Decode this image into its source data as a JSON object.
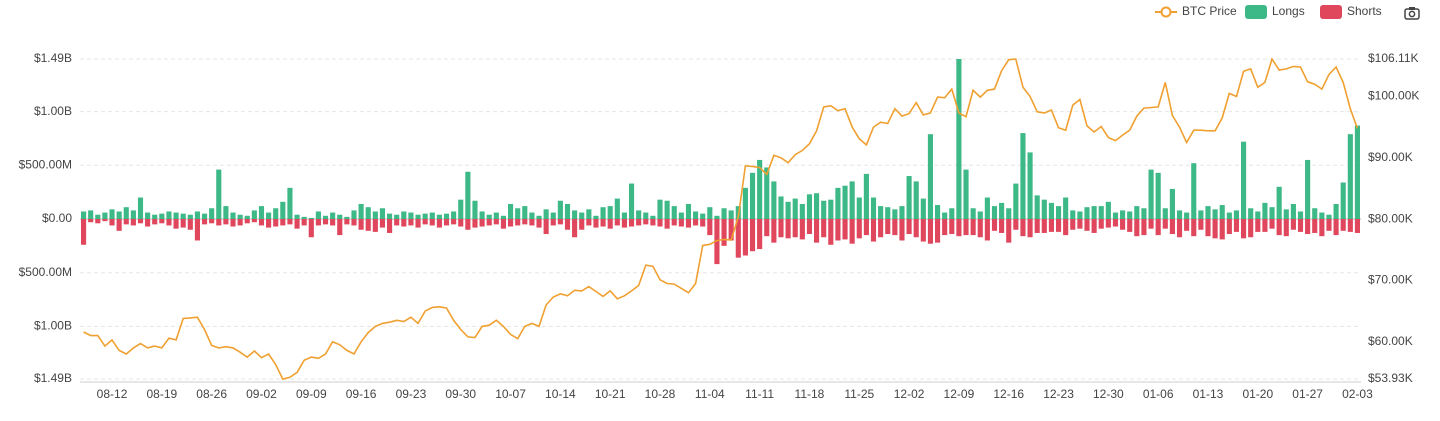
{
  "chart_data": {
    "type": "bar",
    "categories": [
      null,
      null,
      null,
      null,
      "08-12",
      null,
      null,
      null,
      null,
      null,
      null,
      "08-19",
      null,
      null,
      null,
      null,
      null,
      null,
      "08-26",
      null,
      null,
      null,
      null,
      null,
      null,
      "09-02",
      null,
      null,
      null,
      null,
      null,
      null,
      "09-09",
      null,
      null,
      null,
      null,
      null,
      null,
      "09-16",
      null,
      null,
      null,
      null,
      null,
      null,
      "09-23",
      null,
      null,
      null,
      null,
      null,
      null,
      "09-30",
      null,
      null,
      null,
      null,
      null,
      null,
      "10-07",
      null,
      null,
      null,
      null,
      null,
      null,
      "10-14",
      null,
      null,
      null,
      null,
      null,
      null,
      "10-21",
      null,
      null,
      null,
      null,
      null,
      null,
      "10-28",
      null,
      null,
      null,
      null,
      null,
      null,
      "11-04",
      null,
      null,
      null,
      null,
      null,
      null,
      "11-11",
      null,
      null,
      null,
      null,
      null,
      null,
      "11-18",
      null,
      null,
      null,
      null,
      null,
      null,
      "11-25",
      null,
      null,
      null,
      null,
      null,
      null,
      "12-02",
      null,
      null,
      null,
      null,
      null,
      null,
      "12-09",
      null,
      null,
      null,
      null,
      null,
      null,
      "12-16",
      null,
      null,
      null,
      null,
      null,
      null,
      "12-23",
      null,
      null,
      null,
      null,
      null,
      null,
      "12-30",
      null,
      null,
      null,
      null,
      null,
      null,
      "01-06",
      null,
      null,
      null,
      null,
      null,
      null,
      "01-13",
      null,
      null,
      null,
      null,
      null,
      null,
      "01-20",
      null,
      null,
      null,
      null,
      null,
      null,
      "01-27",
      null,
      null,
      null,
      null,
      null,
      null,
      "02-03"
    ],
    "series": [
      {
        "name": "Longs",
        "color": "#3db887",
        "type": "bar",
        "values": [
          70000000.0,
          80000000.0,
          40000000.0,
          60000000.0,
          90000000.0,
          70000000.0,
          110000000.0,
          80000000.0,
          200000000.0,
          60000000.0,
          40000000.0,
          50000000.0,
          70000000.0,
          60000000.0,
          50000000.0,
          40000000.0,
          70000000.0,
          50000000.0,
          100000000.0,
          460000000.0,
          120000000.0,
          60000000.0,
          40000000.0,
          30000000.0,
          80000000.0,
          120000000.0,
          60000000.0,
          100000000.0,
          160000000.0,
          290000000.0,
          40000000.0,
          20000000.0,
          10000000.0,
          70000000.0,
          30000000.0,
          60000000.0,
          40000000.0,
          20000000.0,
          80000000.0,
          140000000.0,
          110000000.0,
          70000000.0,
          100000000.0,
          50000000.0,
          40000000.0,
          70000000.0,
          60000000.0,
          40000000.0,
          50000000.0,
          60000000.0,
          40000000.0,
          50000000.0,
          70000000.0,
          180000000.0,
          440000000.0,
          170000000.0,
          70000000.0,
          40000000.0,
          60000000.0,
          30000000.0,
          140000000.0,
          100000000.0,
          120000000.0,
          60000000.0,
          30000000.0,
          90000000.0,
          60000000.0,
          170000000.0,
          140000000.0,
          80000000.0,
          60000000.0,
          90000000.0,
          30000000.0,
          110000000.0,
          120000000.0,
          190000000.0,
          60000000.0,
          330000000.0,
          80000000.0,
          60000000.0,
          30000000.0,
          180000000.0,
          170000000.0,
          120000000.0,
          60000000.0,
          140000000.0,
          70000000.0,
          50000000.0,
          110000000.0,
          30000000.0,
          100000000.0,
          80000000.0,
          120000000.0,
          290000000.0,
          430000000.0,
          550000000.0,
          480000000.0,
          350000000.0,
          210000000.0,
          160000000.0,
          190000000.0,
          140000000.0,
          230000000.0,
          240000000.0,
          170000000.0,
          180000000.0,
          290000000.0,
          310000000.0,
          350000000.0,
          200000000.0,
          420000000.0,
          200000000.0,
          120000000.0,
          110000000.0,
          90000000.0,
          120000000.0,
          400000000.0,
          350000000.0,
          190000000.0,
          790000000.0,
          130000000.0,
          60000000.0,
          100000000.0,
          1490000000.0,
          460000000.0,
          100000000.0,
          70000000.0,
          200000000.0,
          120000000.0,
          150000000.0,
          100000000.0,
          330000000.0,
          800000000.0,
          620000000.0,
          220000000.0,
          180000000.0,
          150000000.0,
          120000000.0,
          200000000.0,
          80000000.0,
          70000000.0,
          110000000.0,
          120000000.0,
          120000000.0,
          160000000.0,
          60000000.0,
          80000000.0,
          70000000.0,
          120000000.0,
          100000000.0,
          460000000.0,
          430000000.0,
          100000000.0,
          280000000.0,
          80000000.0,
          60000000.0,
          520000000.0,
          80000000.0,
          120000000.0,
          90000000.0,
          130000000.0,
          60000000.0,
          80000000.0,
          720000000.0,
          100000000.0,
          70000000.0,
          150000000.0,
          110000000.0,
          300000000.0,
          90000000.0,
          140000000.0,
          70000000.0,
          550000000.0,
          100000000.0,
          60000000.0,
          40000000.0,
          140000000.0,
          340000000.0,
          790000000.0,
          870000000.0
        ]
      },
      {
        "name": "Shorts",
        "color": "#e0465c",
        "type": "bar",
        "values": [
          -240000000.0,
          -30000000.0,
          -40000000.0,
          -20000000.0,
          -60000000.0,
          -110000000.0,
          -50000000.0,
          -60000000.0,
          -40000000.0,
          -70000000.0,
          -50000000.0,
          -40000000.0,
          -60000000.0,
          -90000000.0,
          -80000000.0,
          -100000000.0,
          -200000000.0,
          -50000000.0,
          -40000000.0,
          -60000000.0,
          -50000000.0,
          -70000000.0,
          -60000000.0,
          -40000000.0,
          -30000000.0,
          -60000000.0,
          -80000000.0,
          -70000000.0,
          -60000000.0,
          -50000000.0,
          -90000000.0,
          -60000000.0,
          -170000000.0,
          -60000000.0,
          -50000000.0,
          -60000000.0,
          -150000000.0,
          -50000000.0,
          -60000000.0,
          -100000000.0,
          -110000000.0,
          -120000000.0,
          -80000000.0,
          -130000000.0,
          -60000000.0,
          -70000000.0,
          -60000000.0,
          -80000000.0,
          -50000000.0,
          -60000000.0,
          -80000000.0,
          -60000000.0,
          -50000000.0,
          -70000000.0,
          -100000000.0,
          -80000000.0,
          -70000000.0,
          -60000000.0,
          -50000000.0,
          -90000000.0,
          -70000000.0,
          -60000000.0,
          -50000000.0,
          -60000000.0,
          -80000000.0,
          -140000000.0,
          -60000000.0,
          -50000000.0,
          -100000000.0,
          -170000000.0,
          -100000000.0,
          -60000000.0,
          -80000000.0,
          -70000000.0,
          -90000000.0,
          -60000000.0,
          -80000000.0,
          -70000000.0,
          -60000000.0,
          -50000000.0,
          -60000000.0,
          -70000000.0,
          -90000000.0,
          -60000000.0,
          -70000000.0,
          -80000000.0,
          -60000000.0,
          -70000000.0,
          -150000000.0,
          -420000000.0,
          -250000000.0,
          -200000000.0,
          -360000000.0,
          -340000000.0,
          -300000000.0,
          -280000000.0,
          -160000000.0,
          -220000000.0,
          -170000000.0,
          -180000000.0,
          -170000000.0,
          -190000000.0,
          -140000000.0,
          -220000000.0,
          -170000000.0,
          -240000000.0,
          -200000000.0,
          -190000000.0,
          -230000000.0,
          -180000000.0,
          -150000000.0,
          -210000000.0,
          -170000000.0,
          -140000000.0,
          -150000000.0,
          -200000000.0,
          -140000000.0,
          -170000000.0,
          -210000000.0,
          -230000000.0,
          -220000000.0,
          -150000000.0,
          -140000000.0,
          -160000000.0,
          -150000000.0,
          -150000000.0,
          -170000000.0,
          -200000000.0,
          -110000000.0,
          -130000000.0,
          -220000000.0,
          -100000000.0,
          -160000000.0,
          -170000000.0,
          -130000000.0,
          -130000000.0,
          -120000000.0,
          -120000000.0,
          -150000000.0,
          -100000000.0,
          -90000000.0,
          -110000000.0,
          -130000000.0,
          -90000000.0,
          -80000000.0,
          -70000000.0,
          -100000000.0,
          -120000000.0,
          -160000000.0,
          -150000000.0,
          -90000000.0,
          -150000000.0,
          -90000000.0,
          -140000000.0,
          -170000000.0,
          -110000000.0,
          -160000000.0,
          -100000000.0,
          -160000000.0,
          -180000000.0,
          -190000000.0,
          -140000000.0,
          -120000000.0,
          -180000000.0,
          -170000000.0,
          -120000000.0,
          -120000000.0,
          -90000000.0,
          -150000000.0,
          -160000000.0,
          -100000000.0,
          -120000000.0,
          -140000000.0,
          -130000000.0,
          -160000000.0,
          -110000000.0,
          -150000000.0,
          -110000000.0,
          -120000000.0,
          -130000000.0
        ]
      },
      {
        "name": "BTC Price",
        "color": "#f0a030",
        "type": "line",
        "axis": "y2",
        "values": [
          61600,
          61000,
          61000,
          59300,
          60300,
          58600,
          58000,
          59000,
          59700,
          59000,
          59300,
          59000,
          60600,
          60300,
          63800,
          63900,
          64000,
          62000,
          59400,
          59000,
          59200,
          59000,
          58300,
          57500,
          58500,
          57400,
          58000,
          56300,
          53900,
          54200,
          55000,
          57000,
          57500,
          57300,
          58000,
          60000,
          59500,
          58600,
          58000,
          60000,
          61500,
          62500,
          63000,
          63200,
          63500,
          63300,
          64000,
          63000,
          65000,
          65600,
          65700,
          65500,
          63500,
          62000,
          60800,
          60700,
          62500,
          62700,
          63500,
          62500,
          61200,
          60500,
          62500,
          63000,
          62500,
          66000,
          67300,
          67800,
          67500,
          68400,
          68300,
          69000,
          68200,
          67400,
          68300,
          67000,
          67500,
          68300,
          69200,
          72500,
          72300,
          70100,
          69500,
          69400,
          68700,
          68000,
          69500,
          75700,
          75900,
          76500,
          76700,
          76600,
          80400,
          88700,
          88600,
          88400,
          87300,
          90400,
          90000,
          89200,
          90500,
          91200,
          92300,
          94400,
          98300,
          98500,
          97700,
          98000,
          95000,
          93100,
          92100,
          95000,
          95800,
          95600,
          98000,
          96800,
          97200,
          99000,
          97000,
          97300,
          99900,
          99800,
          101200,
          97300,
          96700,
          101000,
          99900,
          101000,
          101200,
          104200,
          106000,
          106100,
          101500,
          100000,
          97500,
          97300,
          97800,
          94900,
          94500,
          98600,
          99500,
          95200,
          94200,
          95100,
          93300,
          92800,
          93700,
          94500,
          96800,
          98100,
          98200,
          98300,
          102300,
          96900,
          95000,
          92500,
          94500,
          94500,
          94400,
          94400,
          96500,
          100500,
          100000,
          104100,
          104500,
          101500,
          102300,
          106100,
          104300,
          104500,
          104900,
          104800,
          102400,
          102000,
          101200,
          103600,
          104800,
          102300,
          98000,
          94800
        ]
      }
    ],
    "ylim": [
      -1490000000.0,
      1490000000.0
    ],
    "yticks": [
      {
        "value": 1490000000.0,
        "label": "$1.49B"
      },
      {
        "value": 1000000000.0,
        "label": "$1.00B"
      },
      {
        "value": 500000000.0,
        "label": "$500.00M"
      },
      {
        "value": 0,
        "label": "$0.00"
      },
      {
        "value": -500000000.0,
        "label": "$500.00M"
      },
      {
        "value": -1000000000.0,
        "label": "$1.00B"
      },
      {
        "value": -1490000000.0,
        "label": "$1.49B"
      }
    ],
    "y2lim": [
      53930,
      106110
    ],
    "y2ticks": [
      {
        "value": 106110,
        "label": "$106.11K"
      },
      {
        "value": 100000,
        "label": "$100.00K"
      },
      {
        "value": 90000,
        "label": "$90.00K"
      },
      {
        "value": 80000,
        "label": "$80.00K"
      },
      {
        "value": 70000,
        "label": "$70.00K"
      },
      {
        "value": 60000,
        "label": "$60.00K"
      },
      {
        "value": 53930,
        "label": "$53.93K"
      }
    ],
    "grid": true,
    "legend": "top-right"
  }
}
